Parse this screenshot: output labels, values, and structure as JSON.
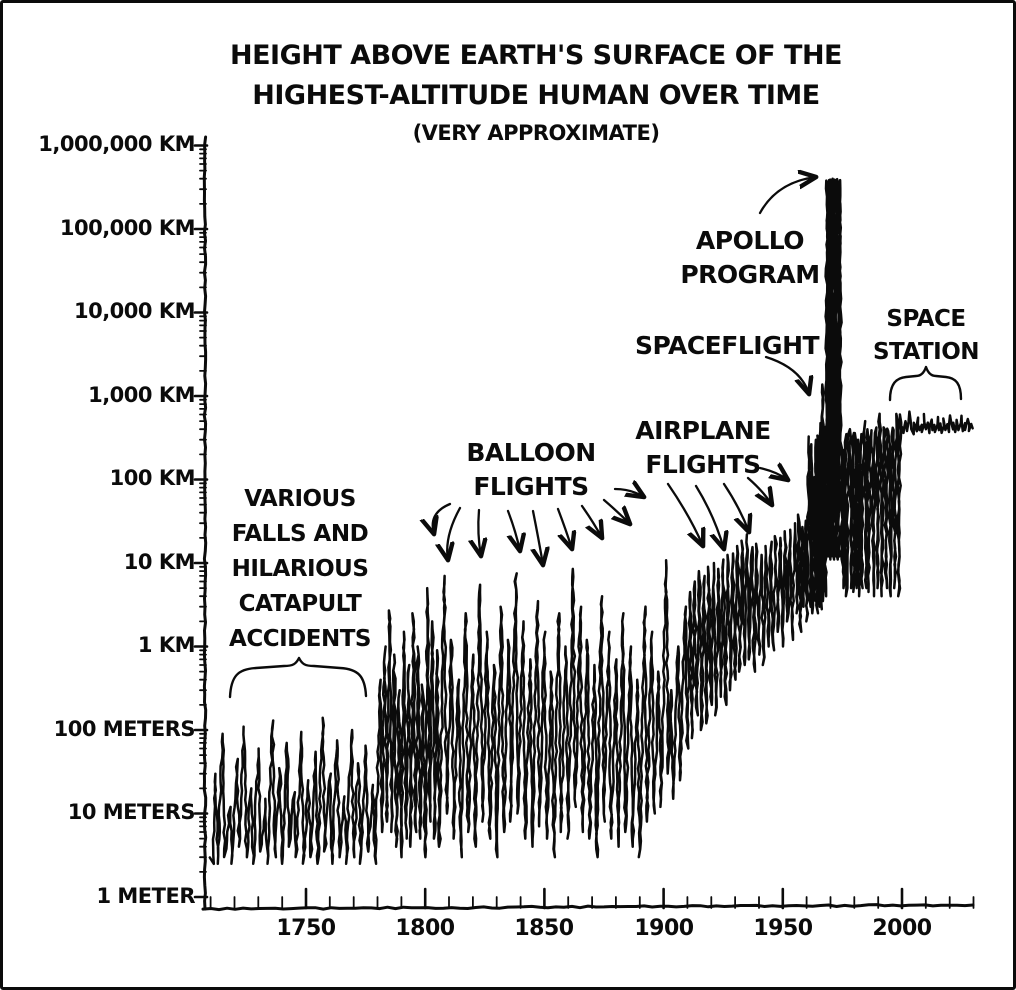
{
  "title": {
    "line1": "HEIGHT ABOVE EARTH'S SURFACE OF THE",
    "line2": "HIGHEST-ALTITUDE HUMAN OVER TIME",
    "line3": "(VERY APPROXIMATE)"
  },
  "chart_data": {
    "type": "line",
    "title": "HEIGHT ABOVE EARTH'S SURFACE OF THE HIGHEST-ALTITUDE HUMAN OVER TIME",
    "subtitle": "(VERY APPROXIMATE)",
    "line_color": "#0b0b0b",
    "background": "#ffffff",
    "grid": false,
    "x_axis": {
      "ticks": [
        1750,
        1800,
        1850,
        1900,
        1950,
        2000
      ],
      "minor_step_years": 10,
      "range_years": [
        1708,
        2032
      ]
    },
    "y_axis": {
      "scale": "log",
      "unit": "meters",
      "tick_labels": [
        "1,000,000 KM",
        "100,000 KM",
        "10,000 KM",
        "1,000 KM",
        "100 KM",
        "10 KM",
        "1 KM",
        "100 METERS",
        "10 METERS",
        "1 METER"
      ],
      "tick_values_m": [
        1000000000.0,
        100000000.0,
        10000000.0,
        1000000.0,
        100000.0,
        10000.0,
        1000.0,
        100.0,
        10.0,
        1
      ],
      "range_m": [
        1,
        2000000000.0
      ]
    },
    "annotations": {
      "catapult": {
        "lines": [
          "VARIOUS",
          "FALLS AND",
          "HILARIOUS",
          "CATAPULT",
          "ACCIDENTS"
        ],
        "marker": "brace",
        "era_years": [
          1715,
          1780
        ]
      },
      "balloon": {
        "lines": [
          "BALLOON",
          "FLIGHTS"
        ],
        "marker": "arrows"
      },
      "airplane": {
        "lines": [
          "AIRPLANE",
          "FLIGHTS"
        ],
        "marker": "arrows"
      },
      "spaceflight": {
        "lines": [
          "SPACEFLIGHT"
        ],
        "marker": "arrow"
      },
      "apollo": {
        "lines": [
          "APOLLO",
          "PROGRAM"
        ],
        "marker": "arrow"
      },
      "space_station": {
        "lines": [
          "SPACE",
          "STATION"
        ],
        "marker": "brace",
        "era_years": [
          1994,
          2026
        ]
      }
    },
    "series_units": "[year, height_above_surface_in_meters]",
    "series": [
      [
        1710,
        3
      ],
      [
        1711,
        2.5
      ],
      [
        1712,
        30
      ],
      [
        1713,
        2.5
      ],
      [
        1715,
        90
      ],
      [
        1716,
        3
      ],
      [
        1718,
        12
      ],
      [
        1719,
        2.5
      ],
      [
        1721,
        45
      ],
      [
        1722,
        4
      ],
      [
        1724,
        110
      ],
      [
        1725,
        3
      ],
      [
        1727,
        20
      ],
      [
        1728,
        2.5
      ],
      [
        1730,
        60
      ],
      [
        1731,
        3.5
      ],
      [
        1733,
        15
      ],
      [
        1734,
        2.5
      ],
      [
        1736,
        130
      ],
      [
        1737,
        3
      ],
      [
        1739,
        35
      ],
      [
        1740,
        2.5
      ],
      [
        1742,
        70
      ],
      [
        1743,
        4
      ],
      [
        1745,
        18
      ],
      [
        1746,
        3
      ],
      [
        1748,
        95
      ],
      [
        1749,
        2.5
      ],
      [
        1751,
        25
      ],
      [
        1752,
        3
      ],
      [
        1754,
        55
      ],
      [
        1755,
        2.5
      ],
      [
        1757,
        140
      ],
      [
        1758,
        3.5
      ],
      [
        1760,
        30
      ],
      [
        1761,
        2.5
      ],
      [
        1763,
        75
      ],
      [
        1764,
        3
      ],
      [
        1766,
        16
      ],
      [
        1767,
        2.5
      ],
      [
        1769,
        100
      ],
      [
        1770,
        3
      ],
      [
        1772,
        40
      ],
      [
        1773,
        2.5
      ],
      [
        1775,
        65
      ],
      [
        1776,
        3.5
      ],
      [
        1778,
        22
      ],
      [
        1779,
        2.5
      ],
      [
        1781,
        400
      ],
      [
        1782,
        6
      ],
      [
        1783,
        1000
      ],
      [
        1784,
        8
      ],
      [
        1785,
        2700
      ],
      [
        1786,
        6
      ],
      [
        1787,
        800
      ],
      [
        1788,
        4
      ],
      [
        1789,
        300
      ],
      [
        1790,
        3
      ],
      [
        1791,
        1500
      ],
      [
        1792,
        5
      ],
      [
        1793,
        600
      ],
      [
        1794,
        4
      ],
      [
        1795,
        2500
      ],
      [
        1796,
        6
      ],
      [
        1797,
        1000
      ],
      [
        1798,
        5
      ],
      [
        1799,
        350
      ],
      [
        1800,
        3
      ],
      [
        1801,
        5000
      ],
      [
        1802,
        8
      ],
      [
        1803,
        2000
      ],
      [
        1804,
        5
      ],
      [
        1805,
        900
      ],
      [
        1806,
        4
      ],
      [
        1808,
        7000
      ],
      [
        1809,
        10
      ],
      [
        1811,
        1200
      ],
      [
        1812,
        5
      ],
      [
        1814,
        400
      ],
      [
        1815,
        3
      ],
      [
        1817,
        2500
      ],
      [
        1818,
        6
      ],
      [
        1820,
        800
      ],
      [
        1821,
        4
      ],
      [
        1823,
        5500
      ],
      [
        1824,
        8
      ],
      [
        1826,
        1500
      ],
      [
        1827,
        5
      ],
      [
        1829,
        600
      ],
      [
        1830,
        3
      ],
      [
        1832,
        3000
      ],
      [
        1833,
        6
      ],
      [
        1835,
        1200
      ],
      [
        1836,
        8
      ],
      [
        1838,
        7500
      ],
      [
        1839,
        10
      ],
      [
        1841,
        2000
      ],
      [
        1842,
        5
      ],
      [
        1844,
        700
      ],
      [
        1845,
        4
      ],
      [
        1847,
        3500
      ],
      [
        1848,
        7
      ],
      [
        1850,
        1500
      ],
      [
        1851,
        5
      ],
      [
        1853,
        500
      ],
      [
        1854,
        3
      ],
      [
        1856,
        2500
      ],
      [
        1857,
        6
      ],
      [
        1859,
        1000
      ],
      [
        1860,
        5
      ],
      [
        1862,
        8500
      ],
      [
        1863,
        12
      ],
      [
        1865,
        3000
      ],
      [
        1866,
        6
      ],
      [
        1868,
        1200
      ],
      [
        1869,
        5
      ],
      [
        1871,
        600
      ],
      [
        1872,
        3
      ],
      [
        1874,
        4000
      ],
      [
        1875,
        8
      ],
      [
        1877,
        1500
      ],
      [
        1878,
        5
      ],
      [
        1880,
        700
      ],
      [
        1881,
        4
      ],
      [
        1883,
        2500
      ],
      [
        1884,
        6
      ],
      [
        1886,
        1000
      ],
      [
        1887,
        4
      ],
      [
        1889,
        400
      ],
      [
        1890,
        3
      ],
      [
        1892,
        3000
      ],
      [
        1893,
        8
      ],
      [
        1895,
        1500
      ],
      [
        1896,
        10
      ],
      [
        1898,
        500
      ],
      [
        1899,
        12
      ],
      [
        1901,
        10800
      ],
      [
        1902,
        30
      ],
      [
        1903,
        300
      ],
      [
        1904,
        15
      ],
      [
        1906,
        1000
      ],
      [
        1907,
        25
      ],
      [
        1909,
        3000
      ],
      [
        1910,
        60
      ],
      [
        1911,
        4500
      ],
      [
        1912,
        80
      ],
      [
        1913,
        6000
      ],
      [
        1914,
        150
      ],
      [
        1915,
        8000
      ],
      [
        1916,
        100
      ],
      [
        1917,
        7000
      ],
      [
        1918,
        120
      ],
      [
        1919,
        9000
      ],
      [
        1920,
        200
      ],
      [
        1921,
        10000
      ],
      [
        1922,
        150
      ],
      [
        1923,
        8500
      ],
      [
        1924,
        250
      ],
      [
        1925,
        11000
      ],
      [
        1926,
        200
      ],
      [
        1927,
        12500
      ],
      [
        1928,
        300
      ],
      [
        1929,
        13000
      ],
      [
        1930,
        400
      ],
      [
        1931,
        16000
      ],
      [
        1932,
        500
      ],
      [
        1933,
        18500
      ],
      [
        1934,
        600
      ],
      [
        1935,
        22000
      ],
      [
        1936,
        700
      ],
      [
        1937,
        15500
      ],
      [
        1938,
        500
      ],
      [
        1939,
        17000
      ],
      [
        1940,
        800
      ],
      [
        1941,
        12500
      ],
      [
        1942,
        600
      ],
      [
        1943,
        16000
      ],
      [
        1944,
        1000
      ],
      [
        1945,
        18000
      ],
      [
        1946,
        900
      ],
      [
        1947,
        21000
      ],
      [
        1948,
        1500
      ],
      [
        1949,
        20000
      ],
      [
        1950,
        1000
      ],
      [
        1951,
        24000
      ],
      [
        1952,
        2000
      ],
      [
        1953,
        25000
      ],
      [
        1954,
        1200
      ],
      [
        1955,
        30000
      ],
      [
        1956,
        2500
      ],
      [
        1956.7,
        38000
      ],
      [
        1957.4,
        1500
      ],
      [
        1958.1,
        27000
      ],
      [
        1958.8,
        3000
      ],
      [
        1959.5,
        32000
      ],
      [
        1960.2,
        2000
      ],
      [
        1961,
        327000
      ],
      [
        1961.5,
        3000
      ],
      [
        1962,
        265000
      ],
      [
        1962.5,
        2500
      ],
      [
        1963,
        107000
      ],
      [
        1963.5,
        3500
      ],
      [
        1963.9,
        300000
      ],
      [
        1964.4,
        2500
      ],
      [
        1964.8,
        336000
      ],
      [
        1965.3,
        3000
      ],
      [
        1965.7,
        475000
      ],
      [
        1966.2,
        2800
      ],
      [
        1966.6,
        1374000
      ],
      [
        1967.1,
        3500
      ],
      [
        1967.5,
        430000
      ],
      [
        1967.9,
        4000
      ],
      [
        1968.5,
        380000000.0
      ],
      [
        1968.9,
        12000
      ],
      [
        1969.2,
        385000000.0
      ],
      [
        1969.6,
        11000
      ],
      [
        1969.9,
        390000000.0
      ],
      [
        1970.3,
        12000
      ],
      [
        1970.7,
        400000000.0
      ],
      [
        1971.1,
        11000
      ],
      [
        1971.5,
        390000000.0
      ],
      [
        1971.9,
        12000
      ],
      [
        1972.4,
        385000000.0
      ],
      [
        1972.8,
        11000
      ],
      [
        1973.2,
        395000000.0
      ],
      [
        1973.6,
        12000
      ],
      [
        1974.0,
        385000000.0
      ],
      [
        1974.5,
        150000
      ],
      [
        1974.9,
        9000
      ],
      [
        1975.3,
        225000
      ],
      [
        1975.7,
        5000
      ],
      [
        1976.3,
        350000
      ],
      [
        1976.8,
        4000
      ],
      [
        1977.5,
        360000
      ],
      [
        1978.2,
        400000
      ],
      [
        1978.7,
        5000
      ],
      [
        1979.4,
        360000
      ],
      [
        1979.9,
        4500
      ],
      [
        1980.5,
        360000
      ],
      [
        1981.0,
        5000
      ],
      [
        1981.5,
        300000
      ],
      [
        1982.0,
        4000
      ],
      [
        1982.6,
        350000
      ],
      [
        1983.2,
        5000
      ],
      [
        1983.8,
        320000
      ],
      [
        1984.4,
        500000
      ],
      [
        1984.9,
        5000
      ],
      [
        1985.5,
        400000
      ],
      [
        1986.1,
        4500
      ],
      [
        1986.8,
        350000
      ],
      [
        1987.4,
        390000
      ],
      [
        1988.0,
        4000
      ],
      [
        1988.6,
        360000
      ],
      [
        1989.2,
        420000
      ],
      [
        1989.8,
        5000
      ],
      [
        1990.4,
        613000
      ],
      [
        1991.0,
        390000
      ],
      [
        1991.6,
        4000
      ],
      [
        1992.2,
        420000
      ],
      [
        1992.8,
        380000
      ],
      [
        1993.4,
        5000
      ],
      [
        1994.0,
        410000
      ],
      [
        1994.6,
        380000
      ],
      [
        1995.2,
        4000
      ],
      [
        1995.8,
        410000
      ],
      [
        1996.4,
        390000
      ],
      [
        1997.0,
        5000
      ],
      [
        1997.6,
        610000
      ],
      [
        1998.2,
        390000
      ],
      [
        1998.8,
        4000
      ],
      [
        1999.3,
        600000
      ],
      [
        1999.7,
        390000
      ],
      [
        2000.3,
        430000
      ],
      [
        2001.0,
        360000
      ],
      [
        2001.7,
        500000
      ],
      [
        2002.4,
        380000
      ],
      [
        2003.1,
        650000
      ],
      [
        2003.8,
        400000
      ],
      [
        2004.5,
        350000
      ],
      [
        2005.2,
        480000
      ],
      [
        2005.9,
        380000
      ],
      [
        2006.6,
        550000
      ],
      [
        2007.3,
        390000
      ],
      [
        2008.0,
        450000
      ],
      [
        2008.7,
        370000
      ],
      [
        2009.3,
        610000
      ],
      [
        2010.0,
        400000
      ],
      [
        2010.7,
        480000
      ],
      [
        2011.4,
        360000
      ],
      [
        2012.1,
        520000
      ],
      [
        2012.8,
        390000
      ],
      [
        2013.5,
        450000
      ],
      [
        2014.2,
        370000
      ],
      [
        2014.9,
        560000
      ],
      [
        2015.6,
        390000
      ],
      [
        2016.3,
        470000
      ],
      [
        2017.0,
        360000
      ],
      [
        2017.7,
        540000
      ],
      [
        2018.4,
        390000
      ],
      [
        2019.1,
        460000
      ],
      [
        2019.8,
        370000
      ],
      [
        2020.5,
        585000
      ],
      [
        2021.2,
        400000
      ],
      [
        2021.9,
        480000
      ],
      [
        2022.6,
        370000
      ],
      [
        2023.3,
        520000
      ],
      [
        2024.0,
        390000
      ],
      [
        2024.7,
        580000
      ],
      [
        2025.4,
        380000
      ],
      [
        2026.1,
        470000
      ],
      [
        2026.8,
        390000
      ],
      [
        2027.5,
        530000
      ],
      [
        2028.2,
        380000
      ],
      [
        2028.9,
        460000
      ],
      [
        2029.6,
        410000
      ]
    ]
  }
}
